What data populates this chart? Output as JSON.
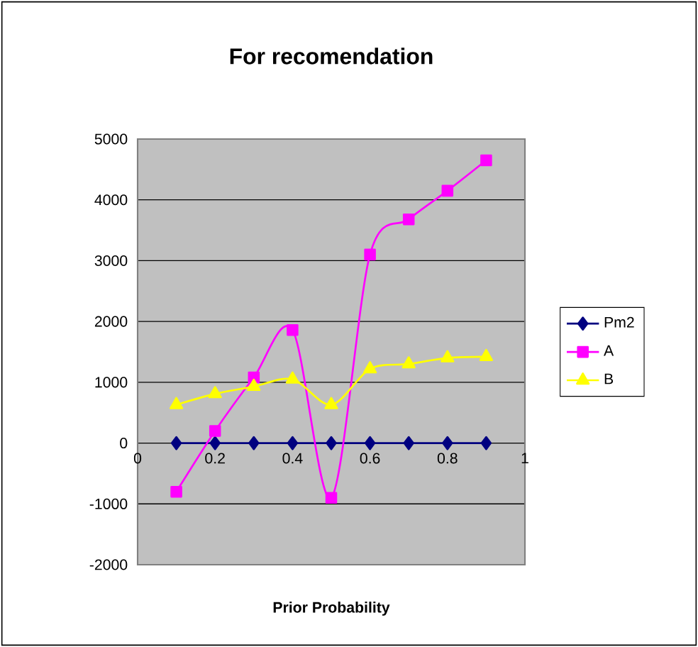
{
  "chart_data": {
    "type": "line",
    "title": "For recomendation",
    "xlabel": "Prior Probability",
    "x": [
      0.1,
      0.2,
      0.3,
      0.4,
      0.5,
      0.6,
      0.7,
      0.8,
      0.9
    ],
    "series": [
      {
        "name": "Pm2",
        "color": "#000080",
        "marker": "diamond",
        "values": [
          0,
          0,
          0,
          0,
          0,
          0,
          0,
          0,
          0
        ]
      },
      {
        "name": "A",
        "color": "#ff00ff",
        "marker": "square",
        "values": [
          -800,
          200,
          1080,
          1860,
          -900,
          3100,
          3680,
          4150,
          4650
        ]
      },
      {
        "name": "B",
        "color": "#ffff00",
        "marker": "triangle",
        "values": [
          630,
          810,
          930,
          1050,
          630,
          1220,
          1300,
          1400,
          1420
        ]
      }
    ],
    "xlim": [
      0,
      1
    ],
    "xticks": [
      0,
      0.2,
      0.4,
      0.6,
      0.8,
      1
    ],
    "ylim": [
      -2000,
      5000
    ],
    "yticks": [
      -2000,
      -1000,
      0,
      1000,
      2000,
      3000,
      4000,
      5000
    ],
    "grid": "y",
    "legend": "right"
  }
}
